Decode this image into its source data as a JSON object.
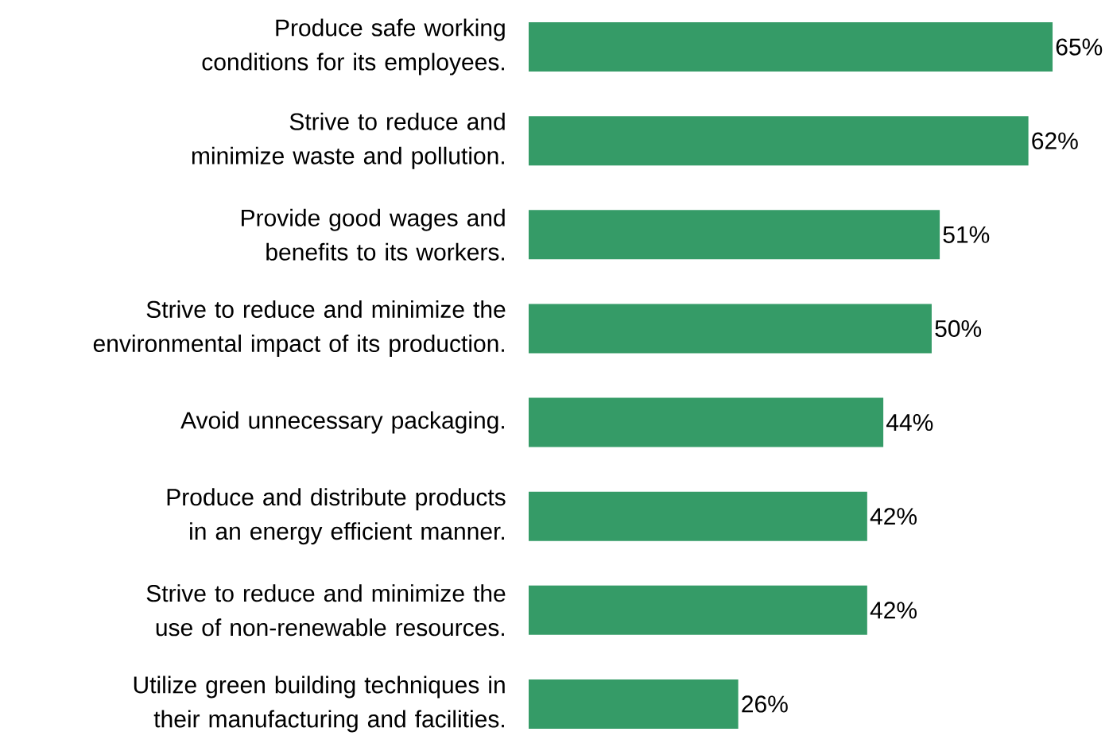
{
  "chart_data": {
    "type": "bar",
    "orientation": "horizontal",
    "color": "#359b67",
    "categories": [
      "Produce safe working conditions for its employees.",
      "Strive to reduce and minimize waste and pollution.",
      "Provide good wages and benefits to its workers.",
      "Strive to reduce and minimize the environmental impact of its production.",
      "Avoid unnecessary packaging.",
      "Produce and distribute products in an energy efficient manner.",
      "Strive to reduce and minimize the use of non-renewable resources.",
      "Utilize green building techniques in their manufacturing and facilities."
    ],
    "values": [
      65,
      62,
      51,
      50,
      44,
      42,
      42,
      26
    ],
    "value_labels": [
      "65%",
      "62%",
      "51%",
      "50%",
      "44%",
      "42%",
      "42%",
      "26%"
    ]
  }
}
